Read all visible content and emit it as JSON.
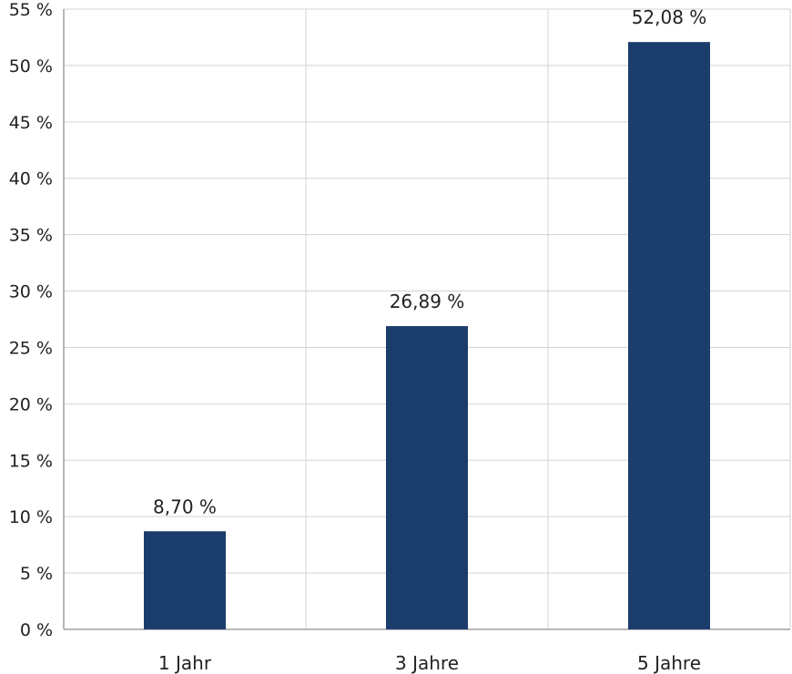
{
  "chart_data": {
    "type": "bar",
    "categories": [
      "1 Jahr",
      "3 Jahre",
      "5 Jahre"
    ],
    "values": [
      8.7,
      26.89,
      52.08
    ],
    "data_labels": [
      "8,70 %",
      "26,89 %",
      "52,08 %"
    ],
    "title": "",
    "xlabel": "",
    "ylabel": "",
    "ylim": [
      0,
      55
    ],
    "yticks": [
      0,
      5,
      10,
      15,
      20,
      25,
      30,
      35,
      40,
      45,
      50,
      55
    ],
    "ytick_labels": [
      "0 %",
      "5 %",
      "10 %",
      "15 %",
      "20 %",
      "25 %",
      "30 %",
      "35 %",
      "40 %",
      "45 %",
      "50 %",
      "55 %"
    ],
    "grid": true,
    "legend": "none",
    "bar_color": "#1b3d6e"
  }
}
